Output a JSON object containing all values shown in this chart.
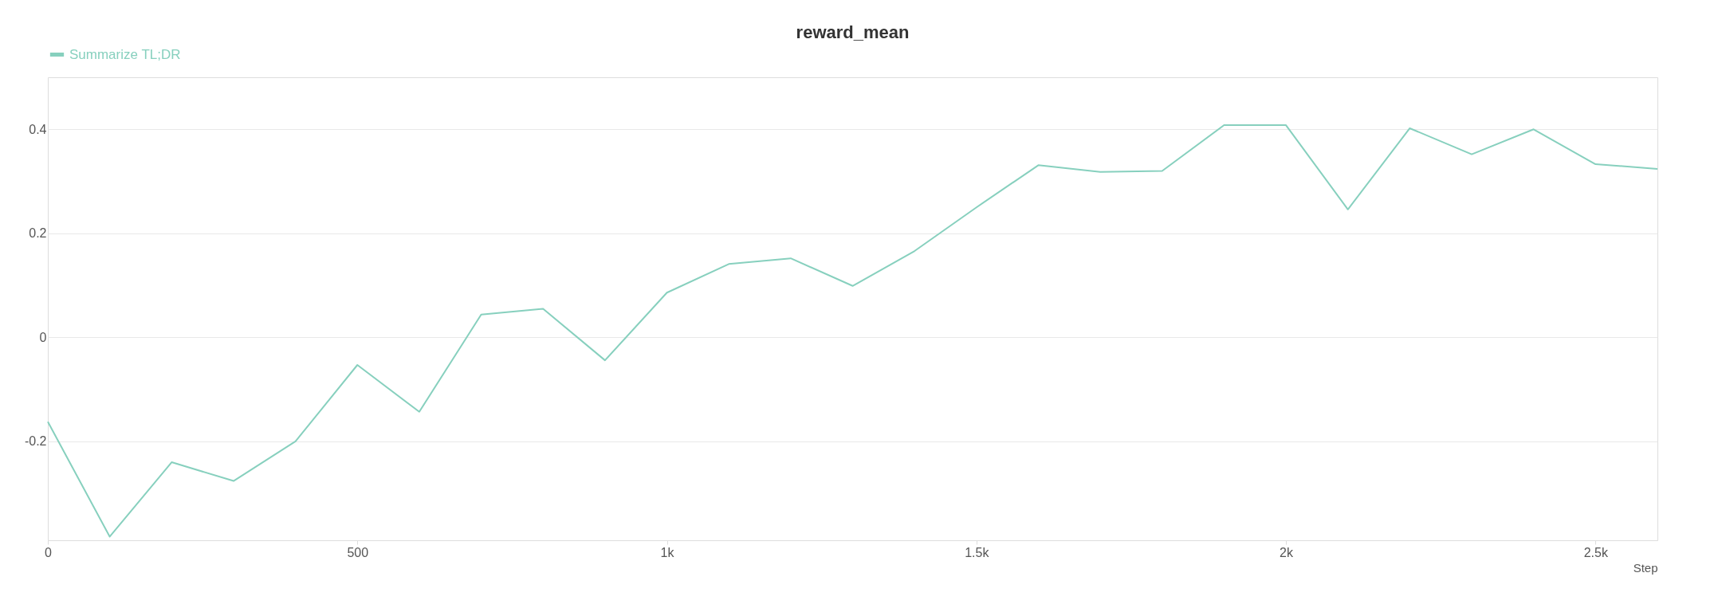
{
  "chart_data": {
    "type": "line",
    "title": "reward_mean",
    "xlabel": "Step",
    "x": [
      0,
      100,
      200,
      300,
      400,
      500,
      600,
      700,
      800,
      900,
      1000,
      1100,
      1200,
      1300,
      1400,
      1500,
      1600,
      1700,
      1800,
      1900,
      2000,
      2100,
      2200,
      2300,
      2400,
      2500,
      2600
    ],
    "series": [
      {
        "name": "Summarize TL;DR",
        "color": "#87d0be",
        "values": [
          -0.162,
          -0.383,
          -0.24,
          -0.276,
          -0.2,
          -0.053,
          -0.143,
          0.044,
          0.055,
          -0.044,
          0.086,
          0.141,
          0.152,
          0.099,
          0.166,
          0.25,
          0.331,
          0.318,
          0.32,
          0.408,
          0.408,
          0.246,
          0.402,
          0.352,
          0.4,
          0.333,
          0.324
        ]
      }
    ],
    "xlim": [
      0,
      2600
    ],
    "xticks": [
      0,
      500,
      {
        "value": 1000,
        "label": "1k"
      },
      {
        "value": 1500,
        "label": "1.5k"
      },
      {
        "value": 2000,
        "label": "2k"
      },
      {
        "value": 2500,
        "label": "2.5k"
      }
    ],
    "ylim": [
      -0.39,
      0.5
    ],
    "yticks": [
      -0.2,
      0,
      0.2,
      0.4
    ],
    "grid": "y",
    "legend": "top",
    "marker": "none",
    "line_style": "solid"
  }
}
